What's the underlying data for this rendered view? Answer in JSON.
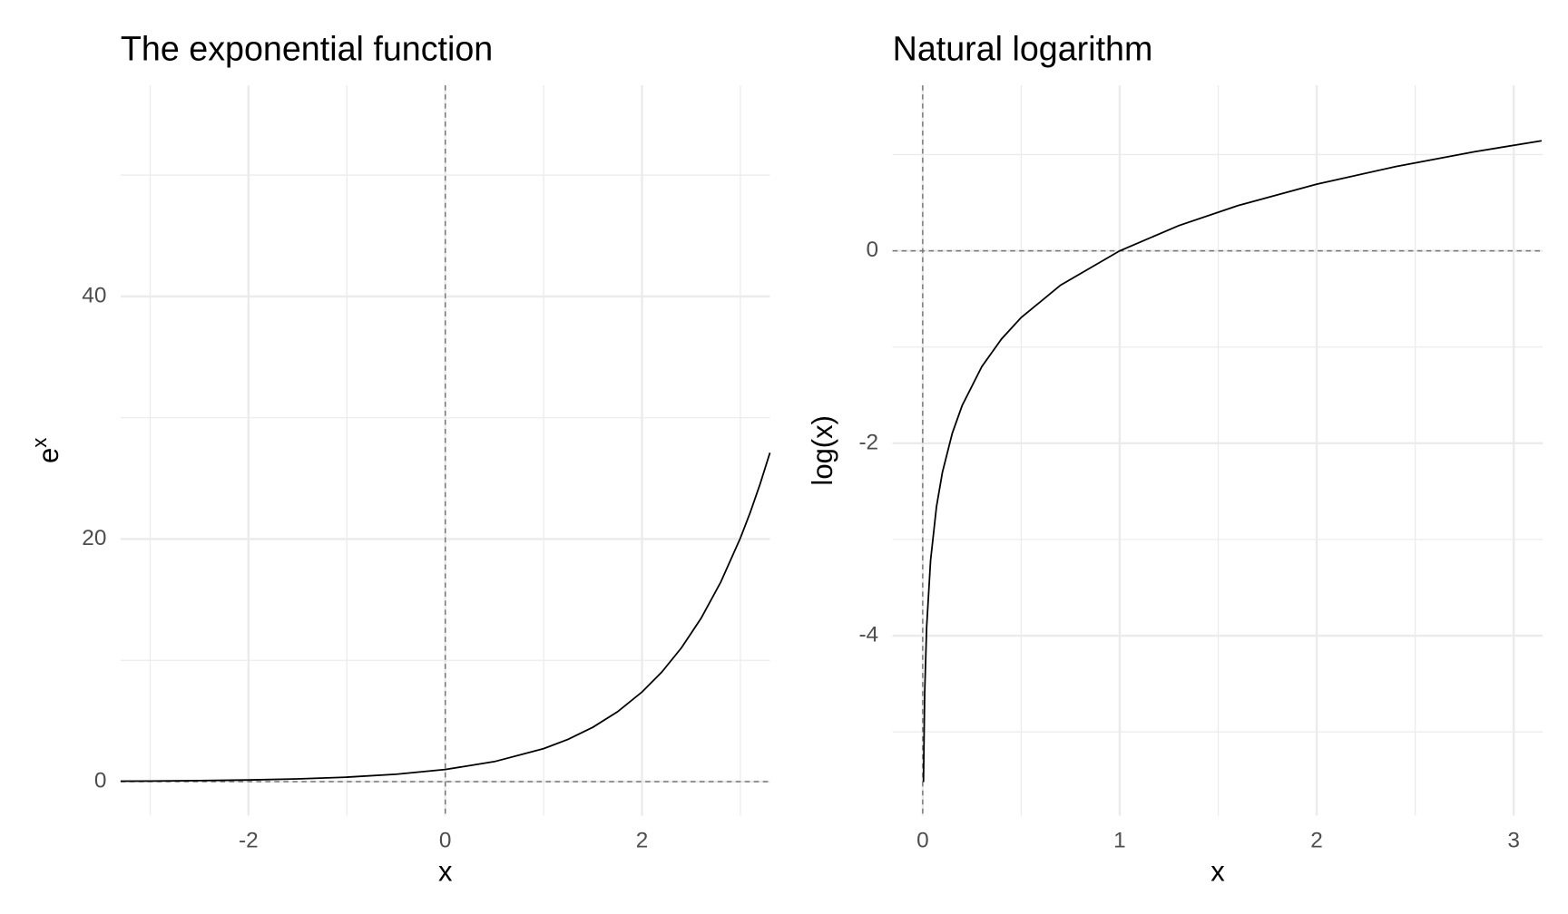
{
  "chart_data": [
    {
      "type": "line",
      "title": "The exponential function",
      "xlabel": "x",
      "ylabel": "e",
      "ylabel_superscript": "x",
      "x": [
        -3.3,
        -3,
        -2.5,
        -2,
        -1.5,
        -1,
        -0.5,
        0,
        0.5,
        1,
        1.25,
        1.5,
        1.75,
        2,
        2.2,
        2.4,
        2.6,
        2.8,
        3,
        3.1,
        3.2,
        3.3
      ],
      "values": [
        0.0369,
        0.0498,
        0.0821,
        0.1353,
        0.2231,
        0.3679,
        0.6065,
        1,
        1.6487,
        2.7183,
        3.4903,
        4.4817,
        5.7546,
        7.3891,
        9.025,
        11.0232,
        13.4637,
        16.4446,
        20.0855,
        22.198,
        24.5325,
        27.1126
      ],
      "color": "#000000",
      "xlim": [
        -3.3,
        3.3
      ],
      "xticks": [
        -2,
        0,
        2
      ],
      "minor_xticks": [
        -3,
        -1,
        1,
        3
      ],
      "ylim": [
        -2.8,
        57.4
      ],
      "yticks": [
        0,
        20,
        40
      ],
      "minor_yticks": [
        10,
        30,
        50
      ],
      "grid": true,
      "reference_lines": {
        "x": 0,
        "y": 0
      }
    },
    {
      "type": "line",
      "title": "Natural logarithm",
      "xlabel": "x",
      "ylabel": "log(x)",
      "x": [
        0.004,
        0.01,
        0.02,
        0.04,
        0.07,
        0.1,
        0.15,
        0.2,
        0.3,
        0.4,
        0.5,
        0.7,
        1,
        1.3,
        1.6,
        2,
        2.4,
        2.8,
        3.14159
      ],
      "values": [
        -5.5215,
        -4.6052,
        -3.912,
        -3.2189,
        -2.6593,
        -2.3026,
        -1.8971,
        -1.6094,
        -1.204,
        -0.9163,
        -0.6931,
        -0.3567,
        0,
        0.2624,
        0.47,
        0.6931,
        0.8755,
        1.0296,
        1.1447
      ],
      "color": "#000000",
      "xlim": [
        -0.153,
        3.148
      ],
      "xticks": [
        0,
        1,
        2,
        3
      ],
      "minor_xticks": [
        0.5,
        1.5,
        2.5
      ],
      "ylim": [
        -5.87,
        1.72
      ],
      "yticks": [
        -4,
        -2,
        0
      ],
      "minor_yticks": [
        -5,
        -3,
        -1,
        1
      ],
      "grid": true,
      "reference_lines": {
        "x": 0,
        "y": 0
      }
    }
  ]
}
